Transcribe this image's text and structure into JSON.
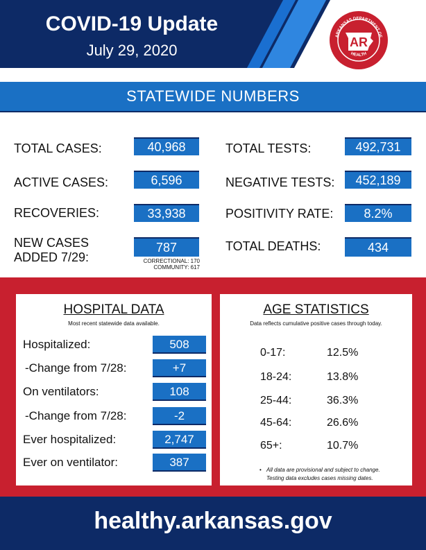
{
  "header": {
    "title": "COVID-19 Update",
    "date": "July 29, 2020",
    "seal": {
      "top_text": "ARKANSAS DEPARTMENT OF",
      "center": "AR",
      "bottom_text": "HEALTH"
    }
  },
  "statewide": {
    "banner": "STATEWIDE NUMBERS",
    "left": [
      {
        "label": "TOTAL CASES:",
        "value": "40,968"
      },
      {
        "label": "ACTIVE CASES:",
        "value": "6,596"
      },
      {
        "label": "RECOVERIES:",
        "value": "33,938"
      },
      {
        "label": "NEW CASES ADDED 7/29:",
        "value": "787"
      }
    ],
    "new_cases_label_line1": "NEW CASES",
    "new_cases_label_line2": "ADDED 7/29:",
    "correctional": "CORRECTIONAL: 170",
    "community": "COMMUNITY: 617",
    "right": [
      {
        "label": "TOTAL TESTS:",
        "value": "492,731"
      },
      {
        "label": "NEGATIVE TESTS:",
        "value": "452,189"
      },
      {
        "label": "POSITIVITY RATE:",
        "value": "8.2%"
      },
      {
        "label": "TOTAL DEATHS:",
        "value": "434"
      }
    ]
  },
  "hospital": {
    "title": "HOSPITAL DATA",
    "subtitle": "Most recent statewide data available.",
    "rows": [
      {
        "label": "Hospitalized:",
        "value": "508"
      },
      {
        "label": "-Change from 7/28:",
        "value": "+7"
      },
      {
        "label": "On ventilators:",
        "value": "108"
      },
      {
        "label": "-Change from 7/28:",
        "value": "-2"
      },
      {
        "label": "Ever hospitalized:",
        "value": "2,747"
      },
      {
        "label": "Ever on ventilator:",
        "value": "387"
      }
    ]
  },
  "age": {
    "title": "AGE STATISTICS",
    "subtitle": "Data reflects cumulative positive cases through today.",
    "rows": [
      {
        "range": "0-17:",
        "pct": "12.5%"
      },
      {
        "range": "18-24:",
        "pct": "13.8%"
      },
      {
        "range": "25-44:",
        "pct": "36.3%"
      },
      {
        "range": "45-64:",
        "pct": "26.6%"
      },
      {
        "range": "65+:",
        "pct": "10.7%"
      }
    ],
    "note_bullet": "•",
    "note_line1": "All data are provisional and subject to change.",
    "note_line2": "Testing data excludes cases missing dates."
  },
  "footer": {
    "url": "healthy.arkansas.gov"
  },
  "colors": {
    "navy": "#0d2a66",
    "blue": "#1a70c4",
    "red": "#c8202f"
  }
}
